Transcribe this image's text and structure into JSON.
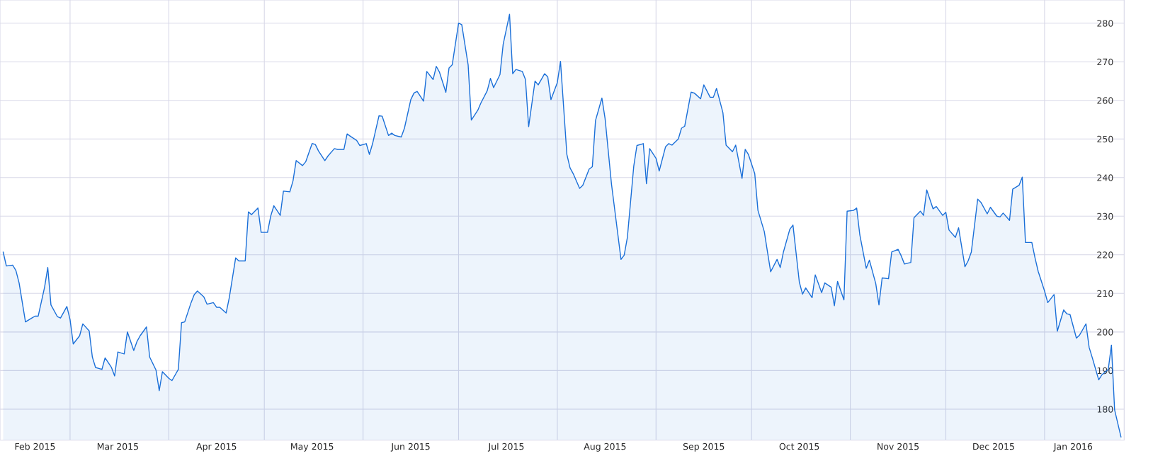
{
  "chart_data": {
    "type": "area",
    "xlim": [
      "2015-02-07",
      "2016-01-26"
    ],
    "ylim": [
      172,
      286
    ],
    "yticks": [
      180,
      190,
      200,
      210,
      220,
      230,
      240,
      250,
      260,
      270,
      280
    ],
    "xticks": [
      {
        "value": "2015-02-18",
        "label": "Feb 2015"
      },
      {
        "value": "2015-03-01",
        "label": null
      },
      {
        "value": "2015-03-16",
        "label": "Mar 2015"
      },
      {
        "value": "2015-04-01",
        "label": null
      },
      {
        "value": "2015-04-16",
        "label": "Apr 2015"
      },
      {
        "value": "2015-05-01",
        "label": null
      },
      {
        "value": "2015-05-16",
        "label": "May 2015"
      },
      {
        "value": "2015-06-01",
        "label": null
      },
      {
        "value": "2015-06-16",
        "label": "Jun 2015"
      },
      {
        "value": "2015-07-01",
        "label": null
      },
      {
        "value": "2015-07-16",
        "label": "Jul 2015"
      },
      {
        "value": "2015-08-01",
        "label": null
      },
      {
        "value": "2015-08-16",
        "label": "Aug 2015"
      },
      {
        "value": "2015-09-01",
        "label": null
      },
      {
        "value": "2015-09-16",
        "label": "Sep 2015"
      },
      {
        "value": "2015-10-01",
        "label": null
      },
      {
        "value": "2015-10-16",
        "label": "Oct 2015"
      },
      {
        "value": "2015-11-01",
        "label": null
      },
      {
        "value": "2015-11-16",
        "label": "Nov 2015"
      },
      {
        "value": "2015-12-01",
        "label": null
      },
      {
        "value": "2015-12-16",
        "label": "Dec 2015"
      },
      {
        "value": "2016-01-01",
        "label": null
      },
      {
        "value": "2016-01-10",
        "label": "Jan 2016"
      }
    ],
    "grid": true,
    "x": [
      "2015-02-08",
      "2015-02-09",
      "2015-02-11",
      "2015-02-12",
      "2015-02-13",
      "2015-02-15",
      "2015-02-17",
      "2015-02-18",
      "2015-02-19",
      "2015-02-21",
      "2015-02-22",
      "2015-02-23",
      "2015-02-25",
      "2015-02-26",
      "2015-02-28",
      "2015-03-01",
      "2015-03-02",
      "2015-03-04",
      "2015-03-05",
      "2015-03-07",
      "2015-03-08",
      "2015-03-09",
      "2015-03-11",
      "2015-03-12",
      "2015-03-14",
      "2015-03-15",
      "2015-03-16",
      "2015-03-18",
      "2015-03-19",
      "2015-03-21",
      "2015-03-22",
      "2015-03-23",
      "2015-03-25",
      "2015-03-26",
      "2015-03-28",
      "2015-03-29",
      "2015-03-30",
      "2015-04-01",
      "2015-04-02",
      "2015-04-04",
      "2015-04-05",
      "2015-04-06",
      "2015-04-08",
      "2015-04-09",
      "2015-04-10",
      "2015-04-12",
      "2015-04-13",
      "2015-04-15",
      "2015-04-16",
      "2015-04-17",
      "2015-04-19",
      "2015-04-20",
      "2015-04-22",
      "2015-04-23",
      "2015-04-25",
      "2015-04-26",
      "2015-04-27",
      "2015-04-29",
      "2015-04-30",
      "2015-05-02",
      "2015-05-03",
      "2015-05-04",
      "2015-05-06",
      "2015-05-07",
      "2015-05-09",
      "2015-05-10",
      "2015-05-11",
      "2015-05-13",
      "2015-05-14",
      "2015-05-16",
      "2015-05-17",
      "2015-05-18",
      "2015-05-20",
      "2015-05-21",
      "2015-05-23",
      "2015-05-24",
      "2015-05-26",
      "2015-05-27",
      "2015-05-28",
      "2015-05-30",
      "2015-05-31",
      "2015-06-02",
      "2015-06-03",
      "2015-06-04",
      "2015-06-06",
      "2015-06-07",
      "2015-06-09",
      "2015-06-10",
      "2015-06-11",
      "2015-06-13",
      "2015-06-14",
      "2015-06-16",
      "2015-06-17",
      "2015-06-18",
      "2015-06-20",
      "2015-06-21",
      "2015-06-23",
      "2015-06-24",
      "2015-06-25",
      "2015-06-27",
      "2015-06-28",
      "2015-06-29",
      "2015-07-01",
      "2015-07-02",
      "2015-07-04",
      "2015-07-05",
      "2015-07-07",
      "2015-07-08",
      "2015-07-10",
      "2015-07-11",
      "2015-07-12",
      "2015-07-14",
      "2015-07-15",
      "2015-07-17",
      "2015-07-18",
      "2015-07-19",
      "2015-07-21",
      "2015-07-22",
      "2015-07-23",
      "2015-07-25",
      "2015-07-26",
      "2015-07-28",
      "2015-07-29",
      "2015-07-30",
      "2015-08-01",
      "2015-08-02",
      "2015-08-04",
      "2015-08-05",
      "2015-08-06",
      "2015-08-08",
      "2015-08-09",
      "2015-08-11",
      "2015-08-12",
      "2015-08-13",
      "2015-08-15",
      "2015-08-16",
      "2015-08-18",
      "2015-08-21",
      "2015-08-22",
      "2015-08-23",
      "2015-08-25",
      "2015-08-26",
      "2015-08-28",
      "2015-08-29",
      "2015-08-30",
      "2015-09-01",
      "2015-09-02",
      "2015-09-04",
      "2015-09-05",
      "2015-09-06",
      "2015-09-08",
      "2015-09-09",
      "2015-09-10",
      "2015-09-12",
      "2015-09-13",
      "2015-09-15",
      "2015-09-16",
      "2015-09-18",
      "2015-09-19",
      "2015-09-20",
      "2015-09-22",
      "2015-09-23",
      "2015-09-25",
      "2015-09-26",
      "2015-09-28",
      "2015-09-29",
      "2015-09-30",
      "2015-10-02",
      "2015-10-03",
      "2015-10-05",
      "2015-10-06",
      "2015-10-07",
      "2015-10-09",
      "2015-10-10",
      "2015-10-11",
      "2015-10-13",
      "2015-10-14",
      "2015-10-16",
      "2015-10-17",
      "2015-10-18",
      "2015-10-20",
      "2015-10-21",
      "2015-10-23",
      "2015-10-24",
      "2015-10-26",
      "2015-10-27",
      "2015-10-28",
      "2015-10-30",
      "2015-10-31",
      "2015-11-02",
      "2015-11-03",
      "2015-11-04",
      "2015-11-06",
      "2015-11-07",
      "2015-11-09",
      "2015-11-10",
      "2015-11-11",
      "2015-11-13",
      "2015-11-14",
      "2015-11-16",
      "2015-11-17",
      "2015-11-18",
      "2015-11-20",
      "2015-11-21",
      "2015-11-23",
      "2015-11-24",
      "2015-11-25",
      "2015-11-27",
      "2015-11-28",
      "2015-11-30",
      "2015-12-01",
      "2015-12-02",
      "2015-12-04",
      "2015-12-05",
      "2015-12-07",
      "2015-12-08",
      "2015-12-09",
      "2015-12-11",
      "2015-12-12",
      "2015-12-14",
      "2015-12-15",
      "2015-12-17",
      "2015-12-18",
      "2015-12-19",
      "2015-12-21",
      "2015-12-22",
      "2015-12-24",
      "2015-12-25",
      "2015-12-26",
      "2015-12-28",
      "2015-12-29",
      "2015-12-30",
      "2016-01-01",
      "2016-01-02",
      "2016-01-04",
      "2016-01-05",
      "2016-01-07",
      "2016-01-08",
      "2016-01-09",
      "2016-01-11",
      "2016-01-12",
      "2016-01-14",
      "2016-01-15",
      "2016-01-16",
      "2016-01-18",
      "2016-01-19",
      "2016-01-21",
      "2016-01-22",
      "2016-01-23",
      "2016-01-25"
    ],
    "series": [
      {
        "color": "#1a6fd8",
        "values": [
          220.7,
          217.1,
          217.3,
          215.9,
          212.7,
          202.6,
          203.6,
          204.1,
          204.1,
          211.6,
          216.7,
          207.0,
          204.0,
          203.6,
          206.6,
          203.2,
          196.9,
          199.0,
          202.1,
          200.3,
          193.5,
          190.8,
          190.3,
          193.3,
          190.8,
          188.6,
          194.8,
          194.3,
          200.0,
          195.2,
          197.5,
          199.0,
          201.3,
          193.5,
          190.1,
          184.8,
          189.7,
          188.0,
          187.4,
          190.3,
          202.4,
          202.6,
          207.6,
          209.7,
          210.6,
          209.1,
          207.2,
          207.6,
          206.4,
          206.4,
          204.9,
          208.9,
          219.2,
          218.4,
          218.4,
          231.1,
          230.4,
          232.1,
          225.8,
          225.8,
          230.0,
          232.7,
          230.2,
          236.5,
          236.3,
          239.1,
          244.4,
          243.1,
          244.1,
          248.8,
          248.6,
          246.9,
          244.4,
          245.6,
          247.5,
          247.3,
          247.3,
          251.3,
          250.7,
          249.6,
          248.3,
          248.8,
          246.0,
          248.8,
          256.0,
          255.9,
          250.9,
          251.5,
          250.9,
          250.5,
          252.8,
          260.2,
          261.9,
          262.3,
          259.8,
          267.5,
          265.4,
          268.8,
          267.3,
          262.1,
          268.4,
          269.2,
          280.0,
          279.6,
          269.2,
          254.9,
          257.4,
          259.3,
          262.5,
          265.7,
          263.3,
          266.7,
          274.5,
          282.3,
          266.9,
          268.0,
          267.5,
          265.4,
          253.2,
          265.0,
          264.0,
          266.9,
          266.1,
          260.2,
          264.6,
          270.1,
          246.0,
          242.5,
          241.0,
          237.2,
          238.0,
          242.2,
          242.8,
          254.8,
          260.6,
          255.3,
          238.4,
          218.8,
          219.9,
          224.5,
          242.9,
          248.3,
          248.8,
          238.4,
          247.5,
          245.0,
          241.7,
          248.0,
          248.8,
          248.4,
          250.0,
          252.8,
          253.3,
          262.1,
          261.9,
          260.4,
          264.0,
          260.8,
          260.8,
          263.1,
          256.8,
          248.4,
          246.7,
          248.4,
          239.8,
          247.3,
          246.0,
          241.0,
          231.5,
          226.0,
          220.7,
          215.6,
          218.8,
          216.7,
          220.7,
          226.6,
          227.7,
          212.9,
          209.8,
          211.4,
          208.9,
          214.8,
          210.2,
          212.7,
          211.6,
          206.8,
          213.1,
          208.3,
          231.3,
          231.5,
          232.1,
          225.1,
          216.5,
          218.6,
          212.5,
          207.0,
          214.0,
          213.8,
          220.7,
          221.4,
          219.7,
          217.6,
          218.0,
          229.6,
          231.3,
          230.2,
          236.8,
          231.9,
          232.5,
          230.2,
          231.0,
          226.4,
          224.5,
          227.0,
          216.9,
          218.4,
          220.7,
          234.4,
          233.6,
          230.6,
          232.3,
          230.0,
          229.8,
          230.8,
          228.9,
          237.0,
          238.0,
          240.1,
          223.2,
          223.2,
          219.2,
          215.7,
          210.6,
          207.6,
          209.7,
          200.2,
          205.7,
          204.7,
          204.5,
          198.4,
          199.2,
          202.1,
          196.0,
          193.3,
          187.6,
          188.9,
          190.3,
          196.6,
          179.8,
          172.8
        ]
      }
    ]
  }
}
